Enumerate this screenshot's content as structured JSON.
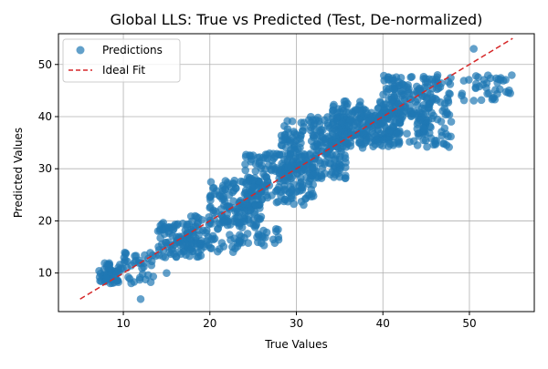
{
  "chart_data": {
    "type": "scatter",
    "title": "Global LLS: True vs Predicted (Test, De-normalized)",
    "xlabel": "True Values",
    "ylabel": "Predicted Values",
    "xlim": [
      2.5,
      57.5
    ],
    "ylim": [
      2.6,
      55.9
    ],
    "xticks": [
      10,
      20,
      30,
      40,
      50
    ],
    "yticks": [
      10,
      20,
      30,
      40,
      50
    ],
    "grid": true,
    "legend": {
      "placement": "top-left",
      "entries": [
        {
          "label": "Predictions",
          "marker": "circle",
          "color": "#1f77b4"
        },
        {
          "label": "Ideal Fit",
          "marker": "dashed-line",
          "color": "#d62728"
        }
      ]
    },
    "series": [
      {
        "name": "Predictions",
        "style": "scatter",
        "color": "#1f77b4",
        "opacity": 0.7,
        "clusters": [
          {
            "x": [
              7,
              9.5
            ],
            "y": [
              8,
              12
            ],
            "n": 50
          },
          {
            "x": [
              9.5,
              14
            ],
            "y": [
              8,
              14
            ],
            "n": 40
          },
          {
            "x": [
              14,
              19
            ],
            "y": [
              13,
              20
            ],
            "n": 100
          },
          {
            "x": [
              17,
              24
            ],
            "y": [
              14,
              21
            ],
            "n": 70
          },
          {
            "x": [
              20,
              26
            ],
            "y": [
              19,
              28
            ],
            "n": 130
          },
          {
            "x": [
              22,
              28
            ],
            "y": [
              15,
              19
            ],
            "n": 25
          },
          {
            "x": [
              24,
              32
            ],
            "y": [
              23,
              33
            ],
            "n": 170
          },
          {
            "x": [
              28,
              36
            ],
            "y": [
              28,
              40
            ],
            "n": 240
          },
          {
            "x": [
              34,
              42
            ],
            "y": [
              34,
              43
            ],
            "n": 190
          },
          {
            "x": [
              36,
              45
            ],
            "y": [
              35,
              41
            ],
            "n": 90
          },
          {
            "x": [
              40,
              48
            ],
            "y": [
              40,
              48
            ],
            "n": 150
          },
          {
            "x": [
              44,
              48
            ],
            "y": [
              34,
              40
            ],
            "n": 40
          },
          {
            "x": [
              49,
              55
            ],
            "y": [
              43,
              48
            ],
            "n": 40
          }
        ],
        "points": [
          [
            12,
            5
          ],
          [
            50.5,
            53
          ],
          [
            29.5,
            26
          ],
          [
            20,
            22.5
          ],
          [
            25,
            26.5
          ],
          [
            44,
            34.5
          ],
          [
            15,
            10
          ]
        ]
      },
      {
        "name": "Ideal Fit",
        "style": "dashed-line",
        "color": "#d62728",
        "x": [
          5,
          55
        ],
        "y": [
          5,
          55
        ]
      }
    ]
  }
}
